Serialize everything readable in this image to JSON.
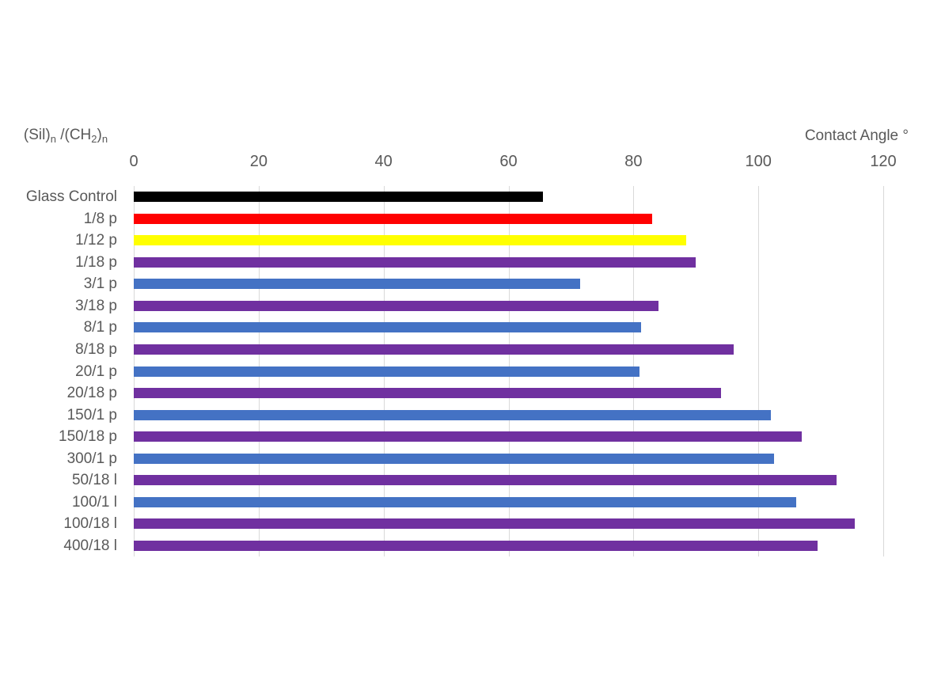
{
  "chart_data": {
    "type": "bar",
    "orientation": "horizontal",
    "x_axis_title": "Contact Angle °",
    "y_axis_title": {
      "plain_text": "(Sil)n /(CH2)n",
      "parts": [
        {
          "t": "(Sil)",
          "sub": false
        },
        {
          "t": "n",
          "sub": true
        },
        {
          "t": " /(CH",
          "sub": false
        },
        {
          "t": "2",
          "sub": true
        },
        {
          "t": ")",
          "sub": false
        },
        {
          "t": "n",
          "sub": true
        }
      ]
    },
    "xlim": [
      0,
      120
    ],
    "xticks": [
      0,
      20,
      40,
      60,
      80,
      100,
      120
    ],
    "grid": true,
    "legend": "none",
    "categories": [
      "Glass Control",
      "1/8 p",
      "1/12 p",
      "1/18 p",
      "3/1 p",
      "3/18 p",
      "8/1 p",
      "8/18 p",
      "20/1 p",
      "20/18 p",
      "150/1 p",
      "150/18 p",
      "300/1 p",
      "50/18 l",
      "100/1 l",
      "100/18 l",
      "400/18 l"
    ],
    "values": [
      65.5,
      83,
      88.5,
      90,
      71.5,
      84,
      81.2,
      96,
      81,
      94,
      102,
      107,
      102.5,
      112.5,
      106,
      115.5,
      109.5
    ],
    "bar_colors": [
      "#000000",
      "#ff0000",
      "#ffff00",
      "#7030a0",
      "#4472c4",
      "#7030a0",
      "#4472c4",
      "#7030a0",
      "#4472c4",
      "#7030a0",
      "#4472c4",
      "#7030a0",
      "#4472c4",
      "#7030a0",
      "#4472c4",
      "#7030a0",
      "#7030a0"
    ]
  },
  "colors": {
    "background": "#ffffff",
    "gridline": "#d9d9d9",
    "axis_text": "#595959"
  }
}
